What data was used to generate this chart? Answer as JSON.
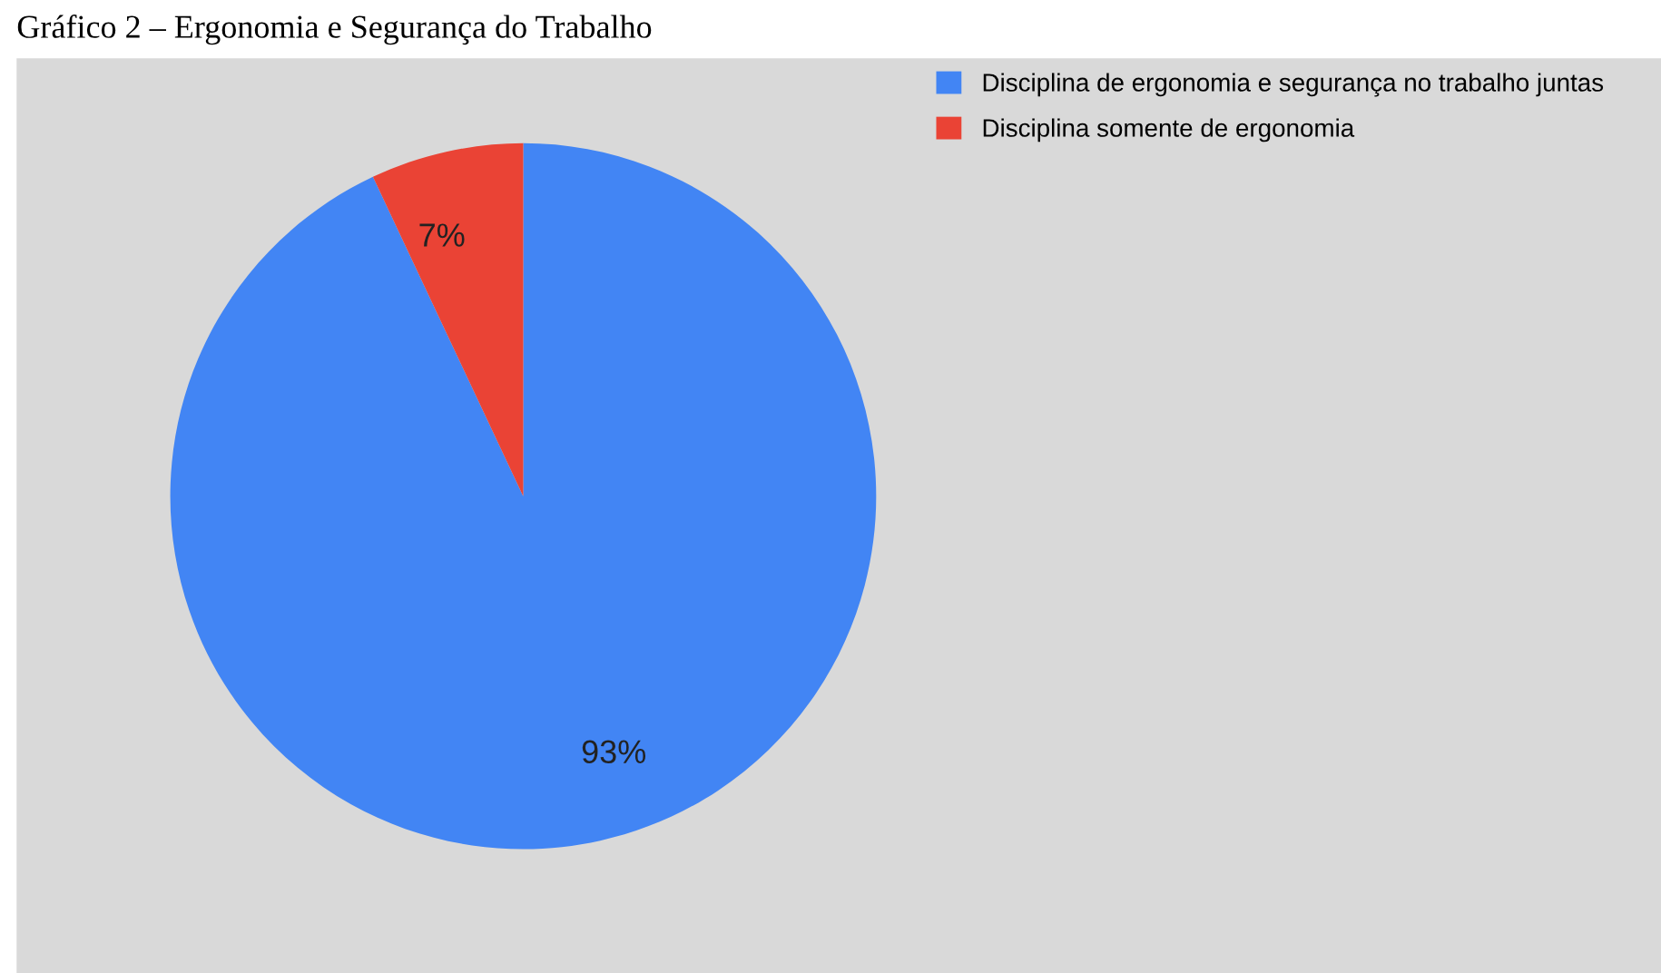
{
  "chart_data": {
    "type": "pie",
    "title": "Gráfico 2 – Ergonomia e Segurança do Trabalho",
    "categories": [
      "Disciplina de ergonomia e segurança no trabalho juntas",
      "Disciplina somente de ergonomia"
    ],
    "values": [
      93,
      7
    ],
    "colors": [
      "#4285f4",
      "#ea4335"
    ],
    "value_labels": [
      "93%",
      "7%"
    ],
    "legend": "top right"
  }
}
